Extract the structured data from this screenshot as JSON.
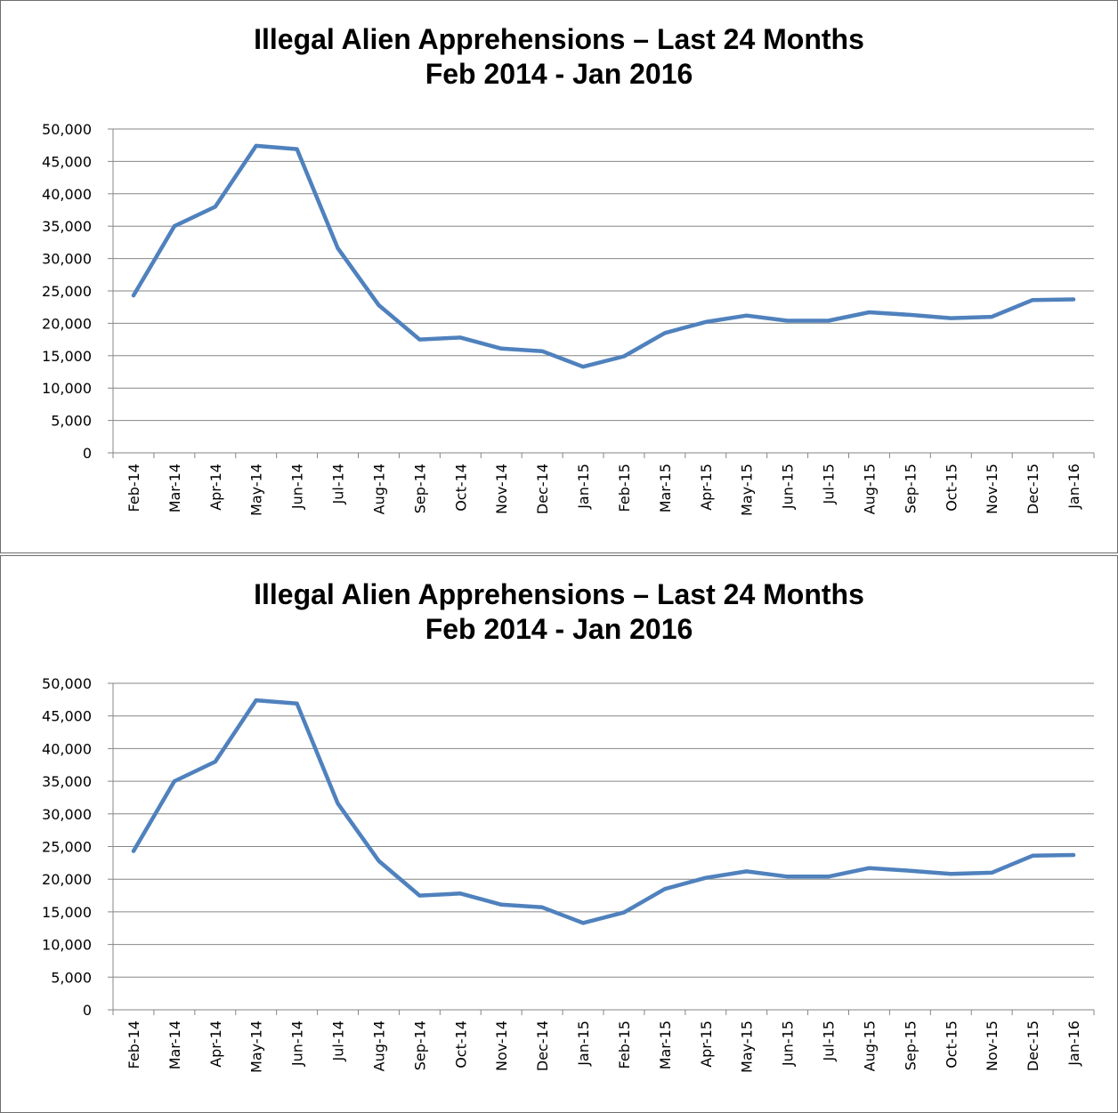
{
  "colors": {
    "series": "#4f81bd",
    "grid": "#868686",
    "axis": "#868686",
    "text": "#000000"
  },
  "chart_data": [
    {
      "type": "line",
      "title": "Illegal Alien Apprehensions – Last 24 Months",
      "subtitle": "Feb 2014 - Jan 2016",
      "xlabel": "",
      "ylabel": "",
      "ylim": [
        0,
        50000
      ],
      "yticks": [
        "0",
        "5,000",
        "10,000",
        "15,000",
        "20,000",
        "25,000",
        "30,000",
        "35,000",
        "40,000",
        "45,000",
        "50,000"
      ],
      "grid": true,
      "legend": "none",
      "categories": [
        "Feb-14",
        "Mar-14",
        "Apr-14",
        "May-14",
        "Jun-14",
        "Jul-14",
        "Aug-14",
        "Sep-14",
        "Oct-14",
        "Nov-14",
        "Dec-14",
        "Jan-15",
        "Feb-15",
        "Mar-15",
        "Apr-15",
        "May-15",
        "Jun-15",
        "Jul-15",
        "Aug-15",
        "Sep-15",
        "Oct-15",
        "Nov-15",
        "Dec-15",
        "Jan-16"
      ],
      "series": [
        {
          "values": [
            24300,
            35000,
            38000,
            47400,
            46900,
            31600,
            22800,
            17500,
            17800,
            16100,
            15700,
            13300,
            14900,
            18500,
            20200,
            21200,
            20400,
            20400,
            21700,
            21300,
            20800,
            21000,
            23600,
            23700
          ]
        }
      ]
    },
    {
      "type": "line",
      "title": "Illegal Alien Apprehensions – Last 24 Months",
      "subtitle": "Feb 2014 - Jan 2016",
      "xlabel": "",
      "ylabel": "",
      "ylim": [
        0,
        50000
      ],
      "yticks": [
        "0",
        "5,000",
        "10,000",
        "15,000",
        "20,000",
        "25,000",
        "30,000",
        "35,000",
        "40,000",
        "45,000",
        "50,000"
      ],
      "grid": true,
      "legend": "none",
      "categories": [
        "Feb-14",
        "Mar-14",
        "Apr-14",
        "May-14",
        "Jun-14",
        "Jul-14",
        "Aug-14",
        "Sep-14",
        "Oct-14",
        "Nov-14",
        "Dec-14",
        "Jan-15",
        "Feb-15",
        "Mar-15",
        "Apr-15",
        "May-15",
        "Jun-15",
        "Jul-15",
        "Aug-15",
        "Sep-15",
        "Oct-15",
        "Nov-15",
        "Dec-15",
        "Jan-16"
      ],
      "series": [
        {
          "values": [
            24300,
            35000,
            38000,
            47400,
            46900,
            31600,
            22800,
            17500,
            17800,
            16100,
            15700,
            13300,
            14900,
            18500,
            20200,
            21200,
            20400,
            20400,
            21700,
            21300,
            20800,
            21000,
            23600,
            23700
          ]
        }
      ]
    }
  ]
}
